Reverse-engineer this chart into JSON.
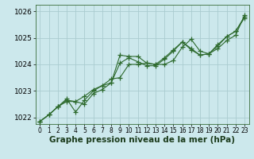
{
  "xlabel": "Graphe pression niveau de la mer (hPa)",
  "bg_color": "#cce8ec",
  "grid_color": "#aaccd0",
  "line_color": "#2d6a2d",
  "marker": "+",
  "markersize": 4,
  "linewidth": 0.8,
  "ylim": [
    1021.75,
    1026.25
  ],
  "xlim": [
    -0.5,
    23.5
  ],
  "xticks": [
    0,
    1,
    2,
    3,
    4,
    5,
    6,
    7,
    8,
    9,
    10,
    11,
    12,
    13,
    14,
    15,
    16,
    17,
    18,
    19,
    20,
    21,
    22,
    23
  ],
  "yticks": [
    1022,
    1023,
    1024,
    1025,
    1026
  ],
  "series": [
    [
      1021.85,
      1022.1,
      1022.4,
      1022.6,
      1022.6,
      1022.5,
      1022.9,
      1023.05,
      1023.3,
      1024.35,
      1024.3,
      1024.3,
      1024.05,
      1024.0,
      1024.0,
      1024.15,
      1024.65,
      1024.95,
      1024.5,
      1024.4,
      1024.6,
      1024.9,
      1025.1,
      1025.85
    ],
    [
      1021.85,
      1022.1,
      1022.4,
      1022.7,
      1022.2,
      1022.65,
      1023.0,
      1023.2,
      1023.3,
      1024.05,
      1024.25,
      1024.1,
      1023.95,
      1023.95,
      1024.2,
      1024.5,
      1024.85,
      1024.6,
      1024.35,
      1024.4,
      1024.7,
      1025.05,
      1025.25,
      1025.75
    ],
    [
      1021.85,
      1022.1,
      1022.4,
      1022.65,
      1022.6,
      1022.8,
      1023.05,
      1023.2,
      1023.45,
      1023.5,
      1024.0,
      1024.0,
      1024.05,
      1024.0,
      1024.25,
      1024.55,
      1024.85,
      1024.55,
      1024.35,
      1024.4,
      1024.75,
      1025.05,
      1025.25,
      1025.8
    ]
  ],
  "xlabel_fontsize": 7.5,
  "ytick_fontsize": 6.5,
  "xtick_fontsize": 5.5
}
